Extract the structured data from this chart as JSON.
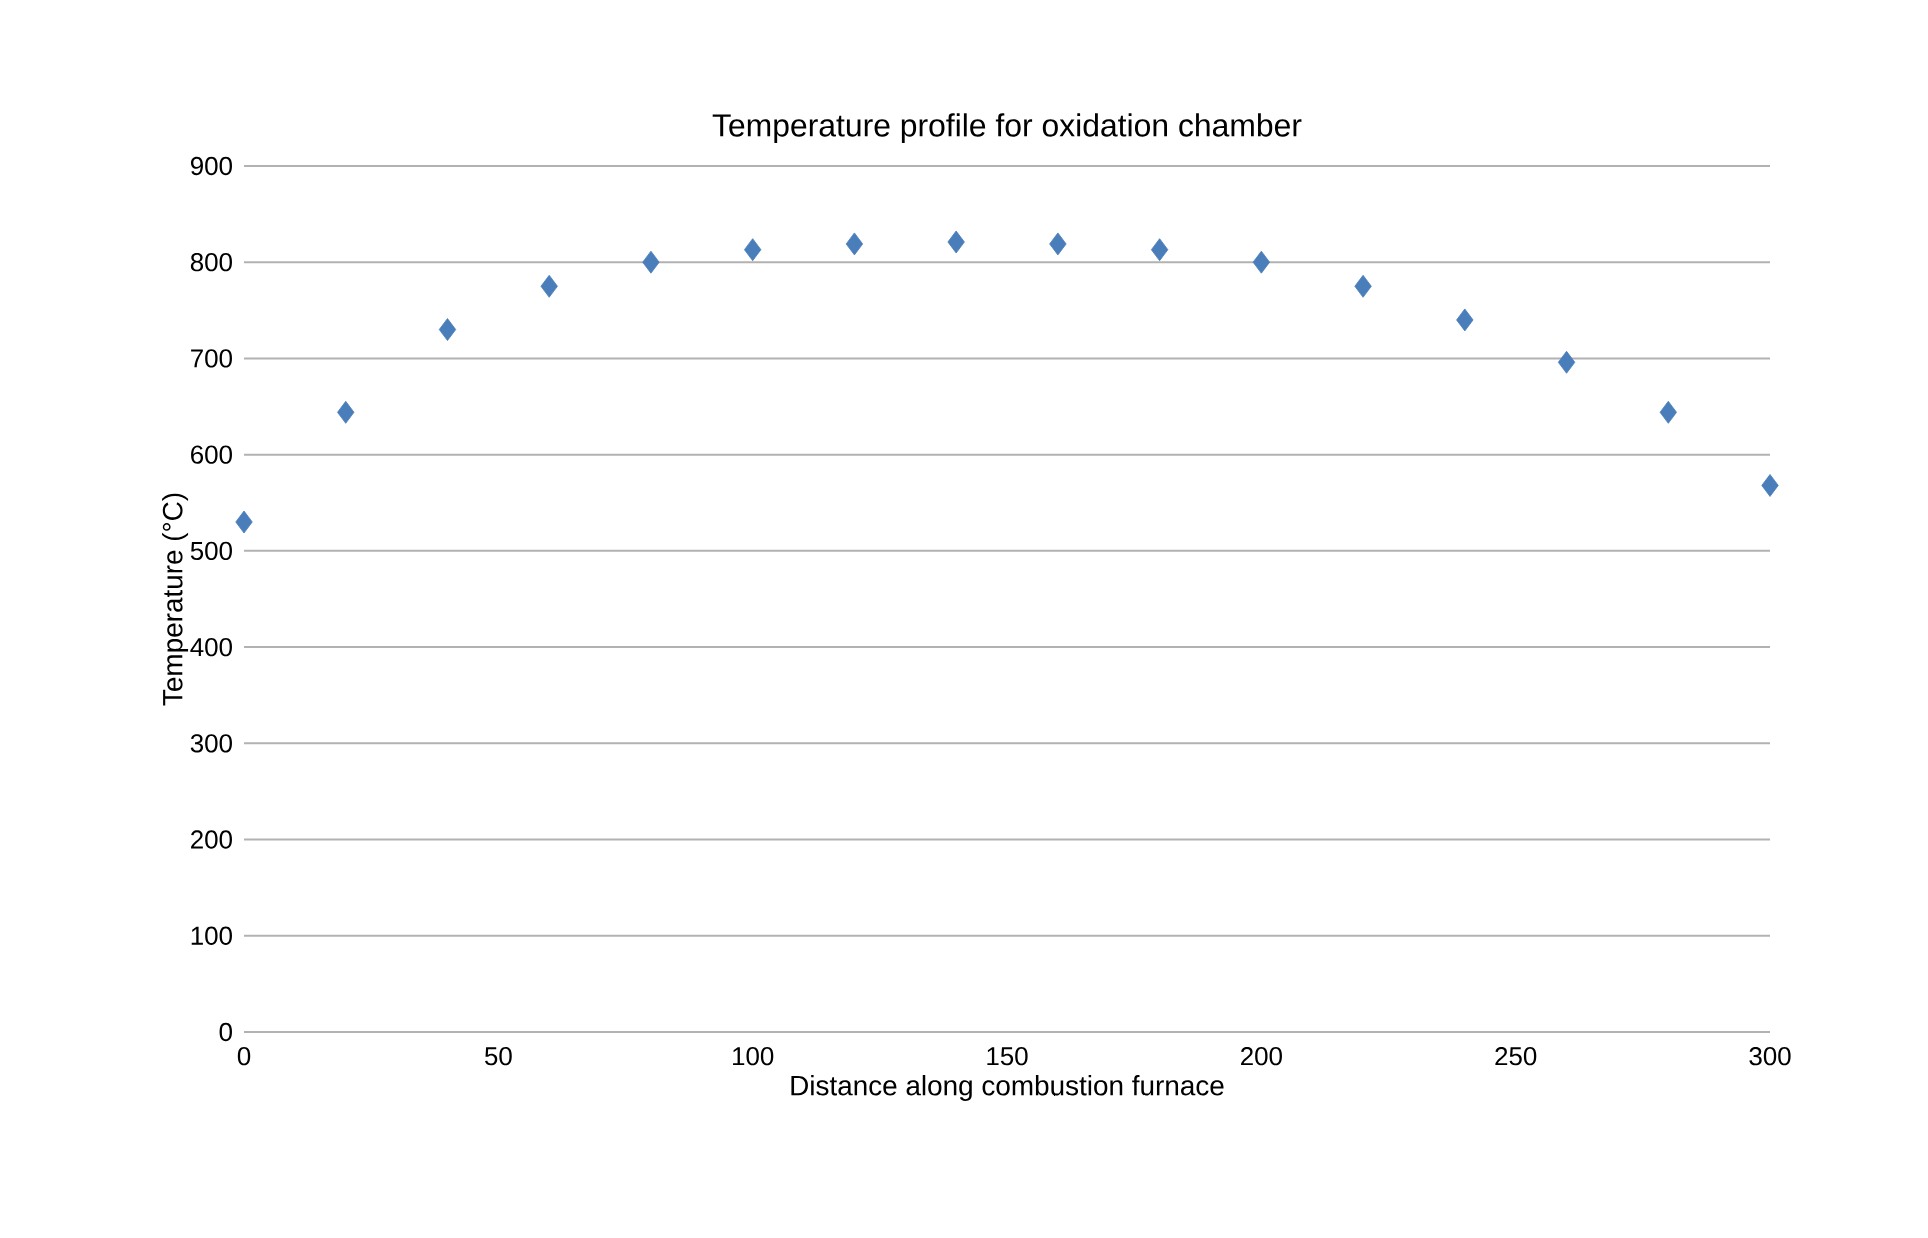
{
  "chart_data": {
    "type": "scatter",
    "title": "Temperature profile for oxidation chamber",
    "xlabel": "Distance along combustion furnace",
    "ylabel": "Temperature (°C)",
    "x": [
      0,
      20,
      40,
      60,
      80,
      100,
      120,
      140,
      160,
      180,
      200,
      220,
      240,
      260,
      280,
      300
    ],
    "values": [
      530,
      644,
      730,
      775,
      800,
      813,
      819,
      821,
      819,
      813,
      800,
      775,
      740,
      696,
      644,
      568
    ],
    "color": "#4a7ebb",
    "marker": "diamond",
    "grid": "y",
    "xlim": [
      0,
      300
    ],
    "xticks": [
      0,
      50,
      100,
      150,
      200,
      250,
      300
    ],
    "ylim": [
      0,
      900
    ],
    "yticks": [
      0,
      100,
      200,
      300,
      400,
      500,
      600,
      700,
      800,
      900
    ]
  }
}
